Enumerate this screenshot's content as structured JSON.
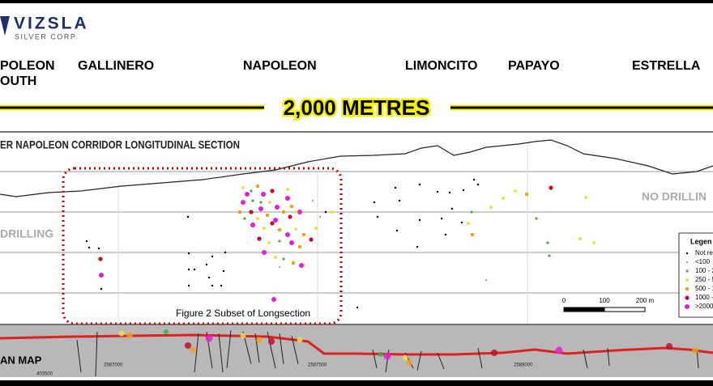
{
  "logo": {
    "name": "VIZSLA",
    "subtitle": "SILVER CORP."
  },
  "zones": [
    {
      "lines": [
        "POLEON",
        "OUTH"
      ]
    },
    {
      "lines": [
        "GALLINERO"
      ]
    },
    {
      "lines": [
        "NAPOLEON"
      ]
    },
    {
      "lines": [
        "LIMONCITO"
      ]
    },
    {
      "lines": [
        "PAPAYO"
      ]
    },
    {
      "lines": [
        "ESTRELLA"
      ]
    }
  ],
  "scale_title": "2,000 METRES",
  "section": {
    "title": "ER NAPOLEON CORRIDOR LONGITUDINAL SECTION",
    "no_drilling_right": "NO DRILLIN",
    "no_drilling_left": "DRILLING",
    "subset_label": "Figure 2 Subset of Longsection"
  },
  "scale_bar": {
    "labels": [
      "0",
      "100",
      "200 m"
    ]
  },
  "legend": {
    "title": "Legen",
    "items": [
      "Not rep",
      "<100",
      "100 - 2",
      "250 - 5",
      "500 - 1",
      "1000 -",
      ">2000"
    ]
  },
  "plan_map": {
    "label": "AN MAP",
    "coords": [
      "403500",
      "2587000",
      "2587500",
      "2588000"
    ]
  }
}
